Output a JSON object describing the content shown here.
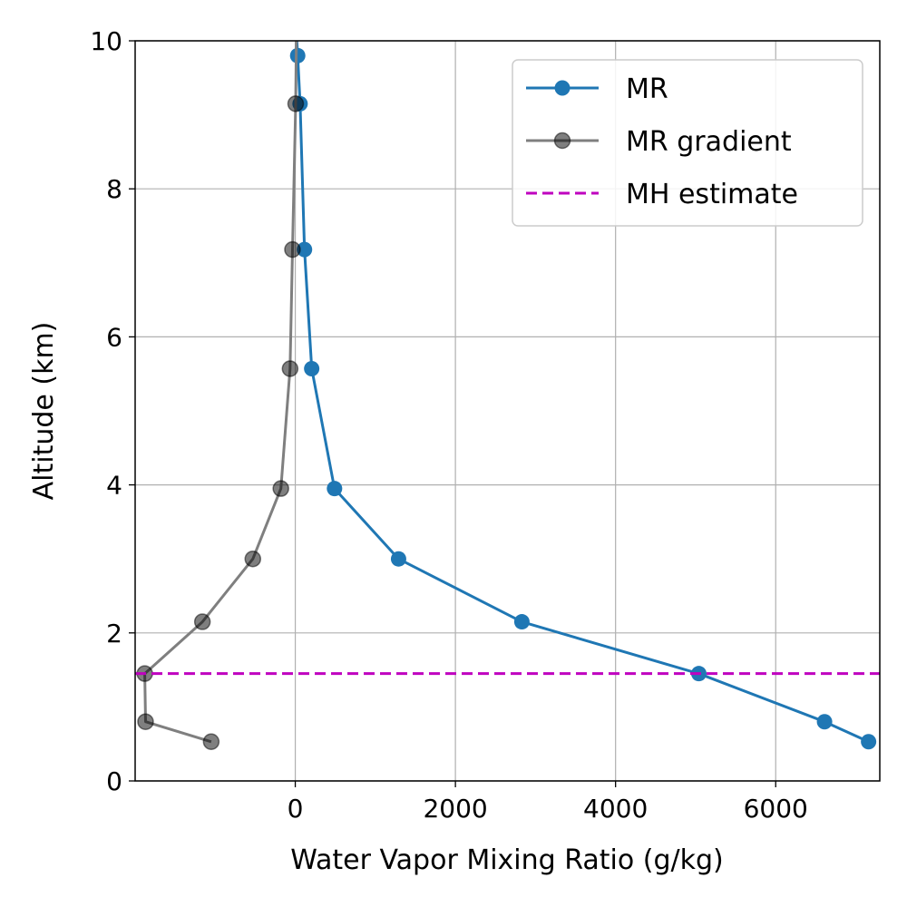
{
  "chart_data": {
    "type": "line",
    "title": "",
    "xlabel": "Water Vapor Mixing Ratio (g/kg)",
    "ylabel": "Altitude (km)",
    "xlim": [
      -2000,
      7300
    ],
    "ylim": [
      0,
      10
    ],
    "xticks": [
      0,
      2000,
      4000,
      6000
    ],
    "xtick_labels": [
      "0",
      "2000",
      "4000",
      "6000"
    ],
    "yticks": [
      0,
      2,
      4,
      6,
      8,
      10
    ],
    "ytick_labels": [
      "0",
      "2",
      "4",
      "6",
      "8",
      "10"
    ],
    "grid": true,
    "legend": "top-right",
    "series": [
      {
        "name": "MR",
        "color": "#1f77b4",
        "style": "solid-marker",
        "x": [
          7160,
          6610,
          5040,
          2830,
          1290,
          490,
          205,
          115,
          60,
          30,
          10
        ],
        "y": [
          0.53,
          0.8,
          1.45,
          2.15,
          3.0,
          3.95,
          5.57,
          7.18,
          9.15,
          9.8,
          10.2
        ]
      },
      {
        "name": "MR gradient",
        "color": "#7f7f7f",
        "style": "solid-marker-alpha",
        "x": [
          -1050,
          -1870,
          -1880,
          -1160,
          -530,
          -180,
          -65,
          -35,
          5,
          15
        ],
        "y": [
          0.53,
          0.8,
          1.45,
          2.15,
          3.0,
          3.95,
          5.57,
          7.18,
          9.15,
          10.2
        ]
      },
      {
        "name": "MH estimate",
        "color": "#bf00bf",
        "style": "dashed",
        "y": 1.45
      }
    ]
  }
}
